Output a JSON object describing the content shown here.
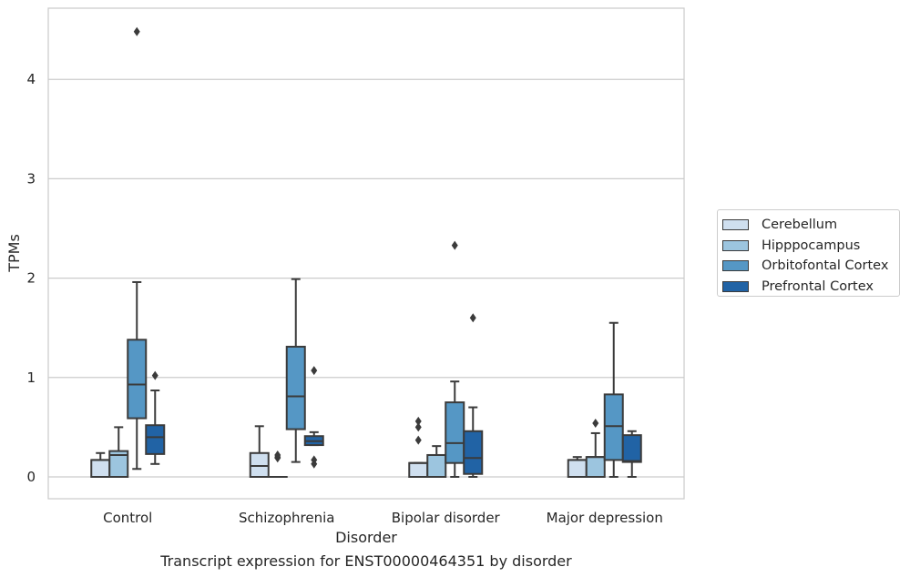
{
  "chart_data": {
    "type": "box",
    "title": "Transcript expression for ENST00000464351 by disorder",
    "xlabel": "Disorder",
    "ylabel": "TPMs",
    "categories": [
      "Control",
      "Schizophrenia",
      "Bipolar disorder",
      "Major depression"
    ],
    "ylim": [
      -0.22,
      4.72
    ],
    "yticks": [
      0,
      1,
      2,
      3,
      4
    ],
    "grid": true,
    "legend_position": "right-center",
    "colors": [
      "#cfdfef",
      "#9cc5df",
      "#5597c5",
      "#2163a5"
    ],
    "series": [
      {
        "name": "Cerebellum",
        "boxes": [
          {
            "whisker_low": 0.0,
            "q1": 0.0,
            "median": 0.17,
            "q3": 0.17,
            "whisker_high": 0.24,
            "outliers": []
          },
          {
            "whisker_low": 0.0,
            "q1": 0.0,
            "median": 0.11,
            "q3": 0.24,
            "whisker_high": 0.51,
            "outliers": []
          },
          {
            "whisker_low": 0.0,
            "q1": 0.0,
            "median": 0.14,
            "q3": 0.14,
            "whisker_high": 0.14,
            "outliers": [
              0.37,
              0.5,
              0.56
            ]
          },
          {
            "whisker_low": 0.0,
            "q1": 0.0,
            "median": 0.17,
            "q3": 0.17,
            "whisker_high": 0.2,
            "outliers": []
          }
        ]
      },
      {
        "name": "Hipppocampus",
        "boxes": [
          {
            "whisker_low": 0.0,
            "q1": 0.0,
            "median": 0.22,
            "q3": 0.26,
            "whisker_high": 0.5,
            "outliers": []
          },
          {
            "whisker_low": 0.0,
            "q1": 0.0,
            "median": 0.0,
            "q3": 0.0,
            "whisker_high": 0.0,
            "outliers": [
              0.19,
              0.2,
              0.22
            ]
          },
          {
            "whisker_low": 0.0,
            "q1": 0.0,
            "median": 0.22,
            "q3": 0.22,
            "whisker_high": 0.31,
            "outliers": []
          },
          {
            "whisker_low": 0.0,
            "q1": 0.0,
            "median": 0.2,
            "q3": 0.2,
            "whisker_high": 0.44,
            "outliers": [
              0.54
            ]
          }
        ]
      },
      {
        "name": "Orbitofontal Cortex",
        "boxes": [
          {
            "whisker_low": 0.08,
            "q1": 0.59,
            "median": 0.93,
            "q3": 1.38,
            "whisker_high": 1.96,
            "outliers": [
              4.48
            ]
          },
          {
            "whisker_low": 0.15,
            "q1": 0.48,
            "median": 0.81,
            "q3": 1.31,
            "whisker_high": 1.99,
            "outliers": []
          },
          {
            "whisker_low": 0.0,
            "q1": 0.14,
            "median": 0.34,
            "q3": 0.75,
            "whisker_high": 0.96,
            "outliers": [
              2.33
            ]
          },
          {
            "whisker_low": 0.0,
            "q1": 0.17,
            "median": 0.51,
            "q3": 0.83,
            "whisker_high": 1.55,
            "outliers": []
          }
        ]
      },
      {
        "name": "Prefrontal Cortex",
        "boxes": [
          {
            "whisker_low": 0.13,
            "q1": 0.23,
            "median": 0.4,
            "q3": 0.52,
            "whisker_high": 0.87,
            "outliers": [
              1.02
            ]
          },
          {
            "whisker_low": 0.32,
            "q1": 0.32,
            "median": 0.36,
            "q3": 0.41,
            "whisker_high": 0.45,
            "outliers": [
              0.13,
              0.17,
              1.07
            ]
          },
          {
            "whisker_low": 0.0,
            "q1": 0.03,
            "median": 0.19,
            "q3": 0.46,
            "whisker_high": 0.7,
            "outliers": [
              1.6
            ]
          },
          {
            "whisker_low": 0.0,
            "q1": 0.15,
            "median": 0.16,
            "q3": 0.42,
            "whisker_high": 0.46,
            "outliers": []
          }
        ]
      }
    ]
  }
}
